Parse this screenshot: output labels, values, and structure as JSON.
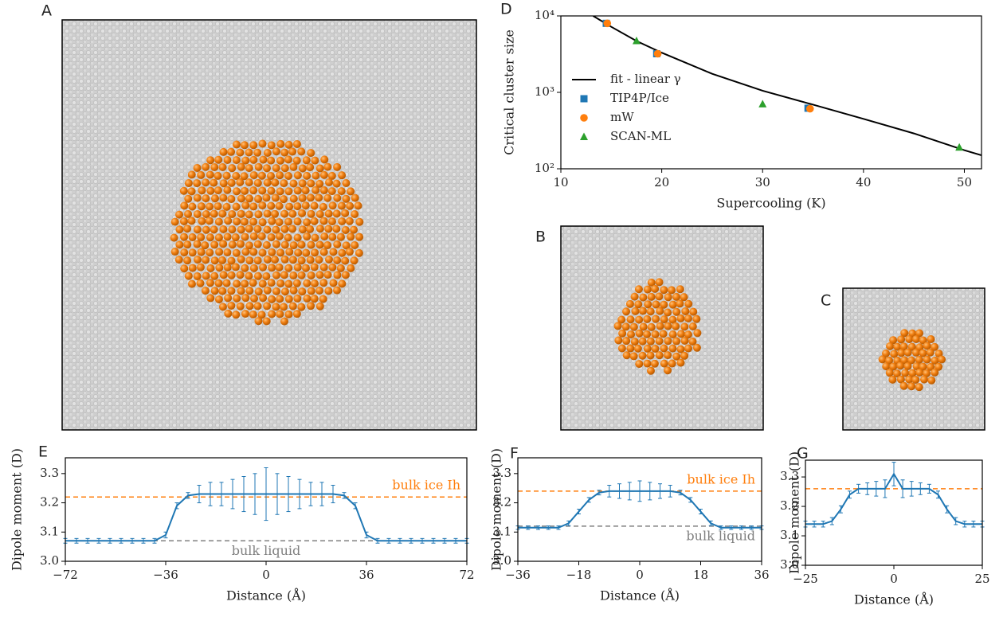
{
  "panels": [
    {
      "label": "A"
    },
    {
      "label": "B"
    },
    {
      "label": "C"
    }
  ],
  "chart_data": [
    {
      "type": "scatter",
      "label": "D",
      "xlabel": "Supercooling (K)",
      "ylabel": "Critical cluster size",
      "xlim": [
        10,
        51.7
      ],
      "xticks": [
        10,
        20,
        30,
        40,
        50
      ],
      "ylim": [
        100,
        10000
      ],
      "ylog": true,
      "yticks": [
        {
          "value": 100,
          "label": "10²"
        },
        {
          "value": 1000,
          "label": "10³"
        },
        {
          "value": 10000,
          "label": "10⁴"
        }
      ],
      "legend": "center-left",
      "series": [
        {
          "name": "fit - linear γ",
          "color": "#000000",
          "marker": "line",
          "x": [
            13.2,
            15,
            17.5,
            20,
            25,
            30,
            35,
            40,
            45,
            50,
            51.7
          ],
          "values": [
            10000,
            7200,
            4700,
            3300,
            1750,
            1050,
            690,
            450,
            290,
            175,
            150
          ]
        },
        {
          "name": "TIP4P/Ice",
          "color": "#1f77b4",
          "marker": "square",
          "x": [
            14.5,
            19.5,
            34.5
          ],
          "values": [
            8000,
            3200,
            620
          ]
        },
        {
          "name": "mW",
          "color": "#ff7f0e",
          "marker": "circle",
          "x": [
            14.6,
            19.6,
            34.7
          ],
          "values": [
            8000,
            3200,
            610
          ]
        },
        {
          "name": "SCAN-ML",
          "color": "#2ca02c",
          "marker": "triangle",
          "x": [
            17.5,
            30,
            49.5
          ],
          "values": [
            4700,
            700,
            190
          ]
        }
      ]
    },
    {
      "type": "line",
      "label": "E",
      "xlabel": "Distance (Å)",
      "ylabel": "Dipole moment (D)",
      "xlim": [
        -72,
        72
      ],
      "xticks": [
        {
          "value": -72,
          "label": "−72"
        },
        {
          "value": -36,
          "label": "−36"
        },
        0,
        36,
        72
      ],
      "ylim": [
        3.0,
        3.354
      ],
      "yticks": [
        {
          "value": 3.0,
          "label": "3.0"
        },
        3.1,
        3.2,
        3.3
      ],
      "reference_lines": [
        {
          "value": 3.22,
          "color": "#ff7f0e",
          "label": "bulk ice Ih"
        },
        {
          "value": 3.07,
          "color": "#7f7f7f",
          "label": "bulk liquid"
        }
      ],
      "series": [
        {
          "color": "#1f77b4",
          "x": [
            -72,
            -68,
            -64,
            -60,
            -56,
            -52,
            -48,
            -44,
            -40,
            -36,
            -32,
            -28,
            -24,
            -20,
            -16,
            -12,
            -8,
            -4,
            0,
            4,
            8,
            12,
            16,
            20,
            24,
            28,
            32,
            36,
            40,
            44,
            48,
            52,
            56,
            60,
            64,
            68,
            72
          ],
          "values": [
            3.07,
            3.07,
            3.07,
            3.07,
            3.07,
            3.07,
            3.07,
            3.07,
            3.07,
            3.09,
            3.19,
            3.225,
            3.23,
            3.23,
            3.23,
            3.23,
            3.23,
            3.23,
            3.23,
            3.23,
            3.23,
            3.23,
            3.23,
            3.23,
            3.23,
            3.225,
            3.19,
            3.09,
            3.07,
            3.07,
            3.07,
            3.07,
            3.07,
            3.07,
            3.07,
            3.07,
            3.07
          ],
          "errors": [
            0.008,
            0.008,
            0.008,
            0.008,
            0.008,
            0.008,
            0.008,
            0.008,
            0.008,
            0.01,
            0.01,
            0.01,
            0.03,
            0.04,
            0.04,
            0.05,
            0.06,
            0.07,
            0.09,
            0.07,
            0.06,
            0.05,
            0.04,
            0.04,
            0.03,
            0.01,
            0.01,
            0.01,
            0.008,
            0.008,
            0.008,
            0.008,
            0.008,
            0.008,
            0.008,
            0.008,
            0.008
          ]
        }
      ]
    },
    {
      "type": "line",
      "label": "F",
      "xlabel": "Distance (Å)",
      "ylabel": "Dipole moment (D)",
      "xlim": [
        -36,
        36
      ],
      "xticks": [
        {
          "value": -36,
          "label": "−36"
        },
        {
          "value": -18,
          "label": "−18"
        },
        0,
        18,
        36
      ],
      "ylim": [
        3.0,
        3.354
      ],
      "yticks": [
        {
          "value": 3.0,
          "label": "3.0"
        },
        3.1,
        3.2,
        3.3
      ],
      "reference_lines": [
        {
          "value": 3.24,
          "color": "#ff7f0e",
          "label": "bulk ice Ih"
        },
        {
          "value": 3.12,
          "color": "#7f7f7f",
          "label": "bulk liquid"
        }
      ],
      "series": [
        {
          "color": "#1f77b4",
          "x": [
            -36,
            -33,
            -30,
            -27,
            -24,
            -21,
            -18,
            -15,
            -12,
            -9,
            -6,
            -3,
            0,
            3,
            6,
            9,
            12,
            15,
            18,
            21,
            24,
            27,
            30,
            33,
            36
          ],
          "values": [
            3.115,
            3.115,
            3.115,
            3.115,
            3.115,
            3.13,
            3.17,
            3.21,
            3.235,
            3.24,
            3.24,
            3.24,
            3.24,
            3.24,
            3.24,
            3.24,
            3.235,
            3.21,
            3.17,
            3.13,
            3.115,
            3.115,
            3.115,
            3.115,
            3.115
          ],
          "errors": [
            0.006,
            0.006,
            0.006,
            0.006,
            0.006,
            0.008,
            0.008,
            0.008,
            0.008,
            0.02,
            0.025,
            0.03,
            0.035,
            0.03,
            0.025,
            0.02,
            0.008,
            0.008,
            0.008,
            0.008,
            0.006,
            0.006,
            0.006,
            0.006,
            0.006
          ]
        }
      ]
    },
    {
      "type": "line",
      "label": "G",
      "xlabel": "Distance (Å)",
      "ylabel": "Dipole moment (D)",
      "xlim": [
        -25,
        25
      ],
      "xticks": [
        {
          "value": -25,
          "label": "−25"
        },
        0,
        25
      ],
      "ylim": [
        3.0,
        3.357
      ],
      "yticks": [
        {
          "value": 3.0,
          "label": "3.0"
        },
        3.1,
        3.2,
        3.3
      ],
      "reference_lines": [
        {
          "value": 3.26,
          "color": "#ff7f0e"
        }
      ],
      "series": [
        {
          "color": "#1f77b4",
          "x": [
            -25,
            -22.5,
            -20,
            -17.5,
            -15,
            -12.5,
            -10,
            -7.5,
            -5,
            -2.5,
            0,
            2.5,
            5,
            7.5,
            10,
            12.5,
            15,
            17.5,
            20,
            22.5,
            25
          ],
          "values": [
            3.14,
            3.14,
            3.14,
            3.15,
            3.19,
            3.24,
            3.26,
            3.26,
            3.26,
            3.26,
            3.31,
            3.26,
            3.26,
            3.26,
            3.26,
            3.24,
            3.19,
            3.15,
            3.14,
            3.14,
            3.14
          ],
          "errors": [
            0.01,
            0.01,
            0.01,
            0.012,
            0.012,
            0.012,
            0.015,
            0.02,
            0.025,
            0.03,
            0.04,
            0.03,
            0.025,
            0.02,
            0.015,
            0.012,
            0.012,
            0.012,
            0.01,
            0.01,
            0.01
          ]
        }
      ]
    }
  ]
}
